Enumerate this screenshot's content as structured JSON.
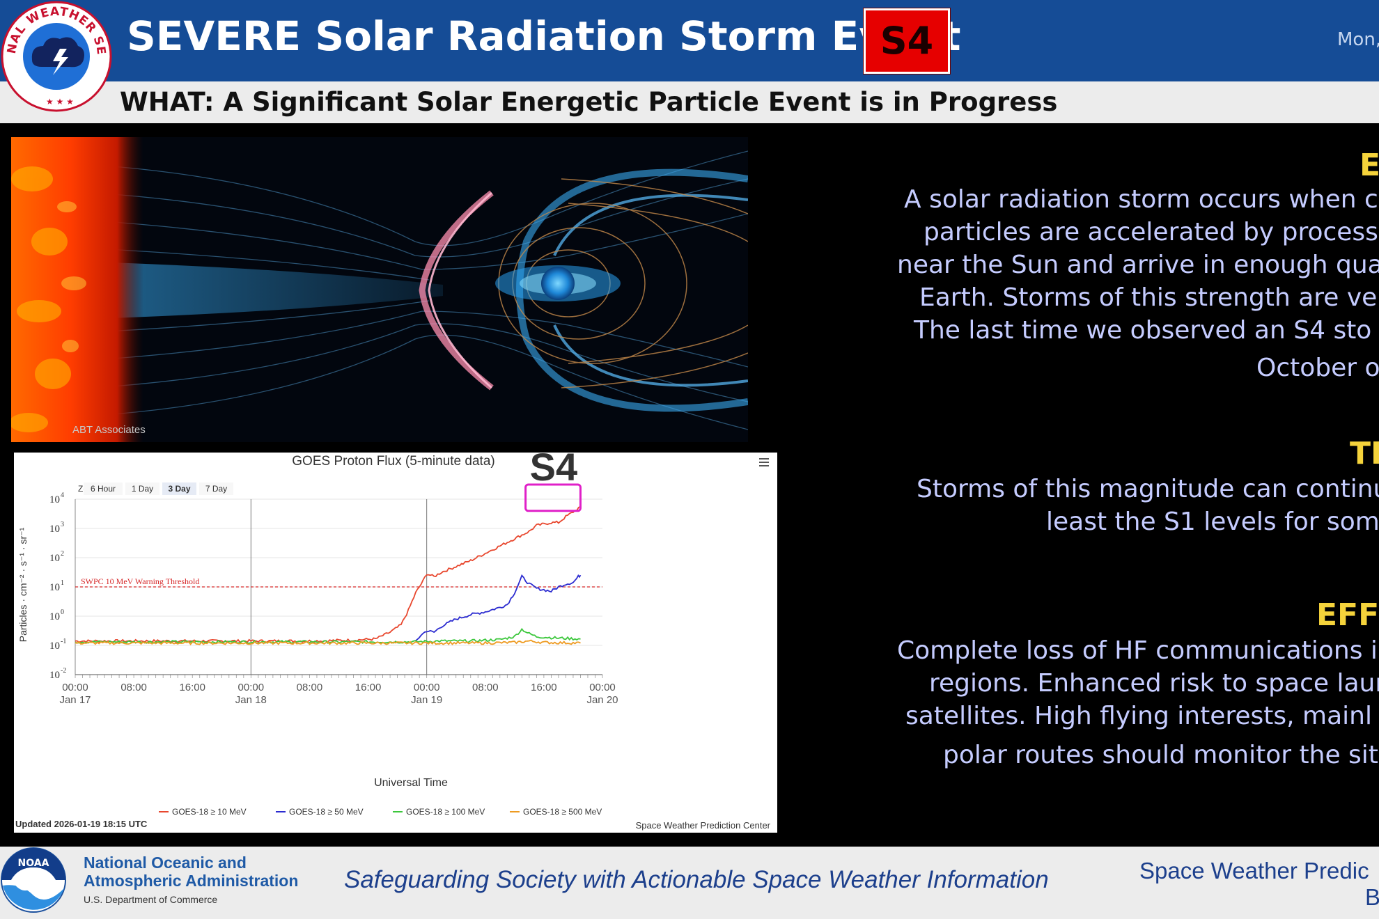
{
  "header": {
    "title": "SEVERE Solar Radiation Storm Event",
    "scale_badge": "S4",
    "date_partial": "Mon,",
    "logo_text": "NATIONAL WEATHER SERVICE"
  },
  "subheader": {
    "what": "WHAT: A Significant Solar Energetic Particle Event is in Progress"
  },
  "illustration": {
    "credit": "ABT Associates"
  },
  "right_panel": {
    "section1": {
      "title": "E",
      "lines": [
        "A solar radiation storm occurs when c",
        "particles are accelerated by processe",
        "near the Sun and arrive in enough qua",
        "Earth. Storms of this strength are ve",
        "The last time we observed an S4 sto",
        "October o"
      ]
    },
    "section2": {
      "title": "TI",
      "lines": [
        "Storms of this magnitude can continu",
        "least the S1 levels for som"
      ]
    },
    "section3": {
      "title": "EFF",
      "lines": [
        "Complete loss of HF communications i",
        "regions. Enhanced risk to space laun",
        "satellites. High flying interests, mainl",
        "polar routes should monitor the sit"
      ]
    }
  },
  "chart_data": {
    "type": "line",
    "title": "GOES Proton Flux (5-minute data)",
    "xlabel": "Universal Time",
    "ylabel": "Particles · cm⁻² · s⁻¹ · sr⁻¹",
    "y_scale": "log",
    "ylim": [
      0.01,
      10000
    ],
    "y_ticks": [
      "10",
      "10",
      "10",
      "10",
      "10",
      "10",
      "10"
    ],
    "y_tick_exponents": [
      "-2",
      "-1",
      "0",
      "1",
      "2",
      "3",
      "4"
    ],
    "y_tick_values": [
      -2,
      -1,
      0,
      1,
      2,
      3,
      4
    ],
    "x_range_hours": [
      0,
      72
    ],
    "x_ticks": [
      {
        "time": "00:00",
        "date": "Jan 17",
        "hour": 0
      },
      {
        "time": "08:00",
        "date": "",
        "hour": 8
      },
      {
        "time": "16:00",
        "date": "",
        "hour": 16
      },
      {
        "time": "00:00",
        "date": "Jan 18",
        "hour": 24
      },
      {
        "time": "08:00",
        "date": "",
        "hour": 32
      },
      {
        "time": "16:00",
        "date": "",
        "hour": 40
      },
      {
        "time": "00:00",
        "date": "Jan 19",
        "hour": 48
      },
      {
        "time": "08:00",
        "date": "",
        "hour": 56
      },
      {
        "time": "16:00",
        "date": "",
        "hour": 64
      },
      {
        "time": "00:00",
        "date": "Jan 20",
        "hour": 72
      }
    ],
    "zoom_label": "Zoom",
    "zoom_options": [
      "6 Hour",
      "1 Day",
      "3 Day",
      "7 Day"
    ],
    "zoom_selected": "3 Day",
    "threshold": {
      "label": "SWPC 10 MeV Warning Threshold",
      "value": 10,
      "color": "#d62728"
    },
    "annotation": {
      "label": "S4",
      "color": "#e020c8",
      "hour_range": [
        61.5,
        69
      ],
      "log_range": [
        3.6,
        4.5
      ]
    },
    "series": [
      {
        "name": "GOES-18 ≥ 10 MeV",
        "color": "#e8472e",
        "points": [
          [
            0,
            -0.85
          ],
          [
            8,
            -0.85
          ],
          [
            16,
            -0.85
          ],
          [
            24,
            -0.85
          ],
          [
            32,
            -0.85
          ],
          [
            38,
            -0.82
          ],
          [
            41,
            -0.78
          ],
          [
            43,
            -0.55
          ],
          [
            44.5,
            -0.3
          ],
          [
            45.5,
            0.2
          ],
          [
            46.5,
            0.8
          ],
          [
            47.5,
            1.2
          ],
          [
            48,
            1.45
          ],
          [
            49,
            1.35
          ],
          [
            50,
            1.5
          ],
          [
            52,
            1.7
          ],
          [
            54,
            1.9
          ],
          [
            56,
            2.15
          ],
          [
            58,
            2.4
          ],
          [
            60,
            2.65
          ],
          [
            62,
            2.9
          ],
          [
            63,
            3.1
          ],
          [
            65,
            3.2
          ],
          [
            66,
            3.2
          ],
          [
            67,
            3.4
          ],
          [
            68.5,
            3.65
          ],
          [
            69,
            3.75
          ]
        ]
      },
      {
        "name": "GOES-18 ≥ 50 MeV",
        "color": "#2b2bd0",
        "points": [
          [
            46.5,
            -0.88
          ],
          [
            47.2,
            -0.65
          ],
          [
            48,
            -0.5
          ],
          [
            49,
            -0.55
          ],
          [
            50,
            -0.35
          ],
          [
            52,
            -0.1
          ],
          [
            54,
            0.05
          ],
          [
            56,
            0.15
          ],
          [
            58,
            0.3
          ],
          [
            59,
            0.4
          ],
          [
            60,
            0.8
          ],
          [
            61,
            1.35
          ],
          [
            62,
            1.1
          ],
          [
            63,
            0.95
          ],
          [
            64,
            0.9
          ],
          [
            65,
            0.85
          ],
          [
            66,
            1.0
          ],
          [
            67,
            1.1
          ],
          [
            68,
            1.15
          ],
          [
            68.7,
            1.35
          ],
          [
            69,
            1.4
          ]
        ]
      },
      {
        "name": "GOES-18 ≥ 100 MeV",
        "color": "#3cc73c",
        "points": [
          [
            0,
            -0.88
          ],
          [
            8,
            -0.88
          ],
          [
            16,
            -0.88
          ],
          [
            24,
            -0.88
          ],
          [
            32,
            -0.88
          ],
          [
            40,
            -0.88
          ],
          [
            46,
            -0.88
          ],
          [
            50,
            -0.85
          ],
          [
            54,
            -0.85
          ],
          [
            58,
            -0.8
          ],
          [
            60,
            -0.7
          ],
          [
            61,
            -0.45
          ],
          [
            62,
            -0.6
          ],
          [
            63,
            -0.7
          ],
          [
            66,
            -0.75
          ],
          [
            69,
            -0.78
          ]
        ]
      },
      {
        "name": "GOES-18 ≥ 500 MeV",
        "color": "#ee9b22",
        "points": [
          [
            0,
            -0.92
          ],
          [
            8,
            -0.92
          ],
          [
            16,
            -0.92
          ],
          [
            24,
            -0.92
          ],
          [
            32,
            -0.92
          ],
          [
            40,
            -0.92
          ],
          [
            48,
            -0.92
          ],
          [
            56,
            -0.92
          ],
          [
            60,
            -0.9
          ],
          [
            62,
            -0.85
          ],
          [
            64,
            -0.9
          ],
          [
            69,
            -0.92
          ]
        ]
      }
    ],
    "updated": "Updated 2026-01-19 18:15 UTC",
    "source": "Space Weather Prediction Center"
  },
  "footer": {
    "noaa_name_line1": "National Oceanic and",
    "noaa_name_line2": "Atmospheric Administration",
    "noaa_dept": "U.S. Department of Commerce",
    "noaa_logo_text": "NOAA",
    "tagline": "Safeguarding Society with Actionable Space Weather Information",
    "swpc_line1": "Space Weather Predic",
    "swpc_line2": "B"
  },
  "colors": {
    "header_bg": "#154c96",
    "badge_red": "#e60000",
    "section_title": "#f5d33b",
    "body_text": "#c5ccff"
  }
}
